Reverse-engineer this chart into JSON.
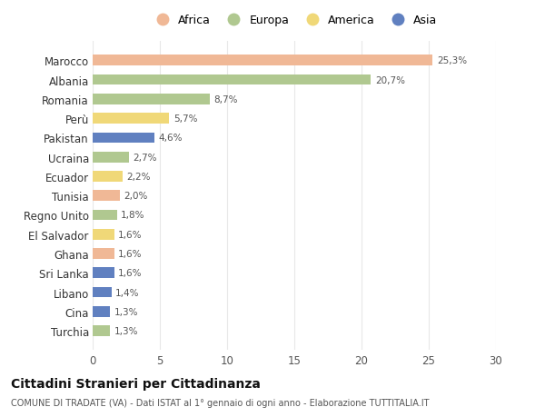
{
  "categories": [
    "Turchia",
    "Cina",
    "Libano",
    "Sri Lanka",
    "Ghana",
    "El Salvador",
    "Regno Unito",
    "Tunisia",
    "Ecuador",
    "Ucraina",
    "Pakistan",
    "Perù",
    "Romania",
    "Albania",
    "Marocco"
  ],
  "values": [
    1.3,
    1.3,
    1.4,
    1.6,
    1.6,
    1.6,
    1.8,
    2.0,
    2.2,
    2.7,
    4.6,
    5.7,
    8.7,
    20.7,
    25.3
  ],
  "labels": [
    "1,3%",
    "1,3%",
    "1,4%",
    "1,6%",
    "1,6%",
    "1,6%",
    "1,8%",
    "2,0%",
    "2,2%",
    "2,7%",
    "4,6%",
    "5,7%",
    "8,7%",
    "20,7%",
    "25,3%"
  ],
  "continents": [
    "Europa",
    "Asia",
    "Asia",
    "Asia",
    "Africa",
    "America",
    "Europa",
    "Africa",
    "America",
    "Europa",
    "Asia",
    "America",
    "Europa",
    "Europa",
    "Africa"
  ],
  "colors": {
    "Africa": "#F0B896",
    "Europa": "#B0C890",
    "America": "#F0D878",
    "Asia": "#6080C0"
  },
  "legend_order": [
    "Africa",
    "Europa",
    "America",
    "Asia"
  ],
  "title": "Cittadini Stranieri per Cittadinanza",
  "subtitle": "COMUNE DI TRADATE (VA) - Dati ISTAT al 1° gennaio di ogni anno - Elaborazione TUTTITALIA.IT",
  "xlim": [
    0,
    30
  ],
  "xticks": [
    0,
    5,
    10,
    15,
    20,
    25,
    30
  ],
  "bg_color": "#ffffff",
  "grid_color": "#e8e8e8"
}
